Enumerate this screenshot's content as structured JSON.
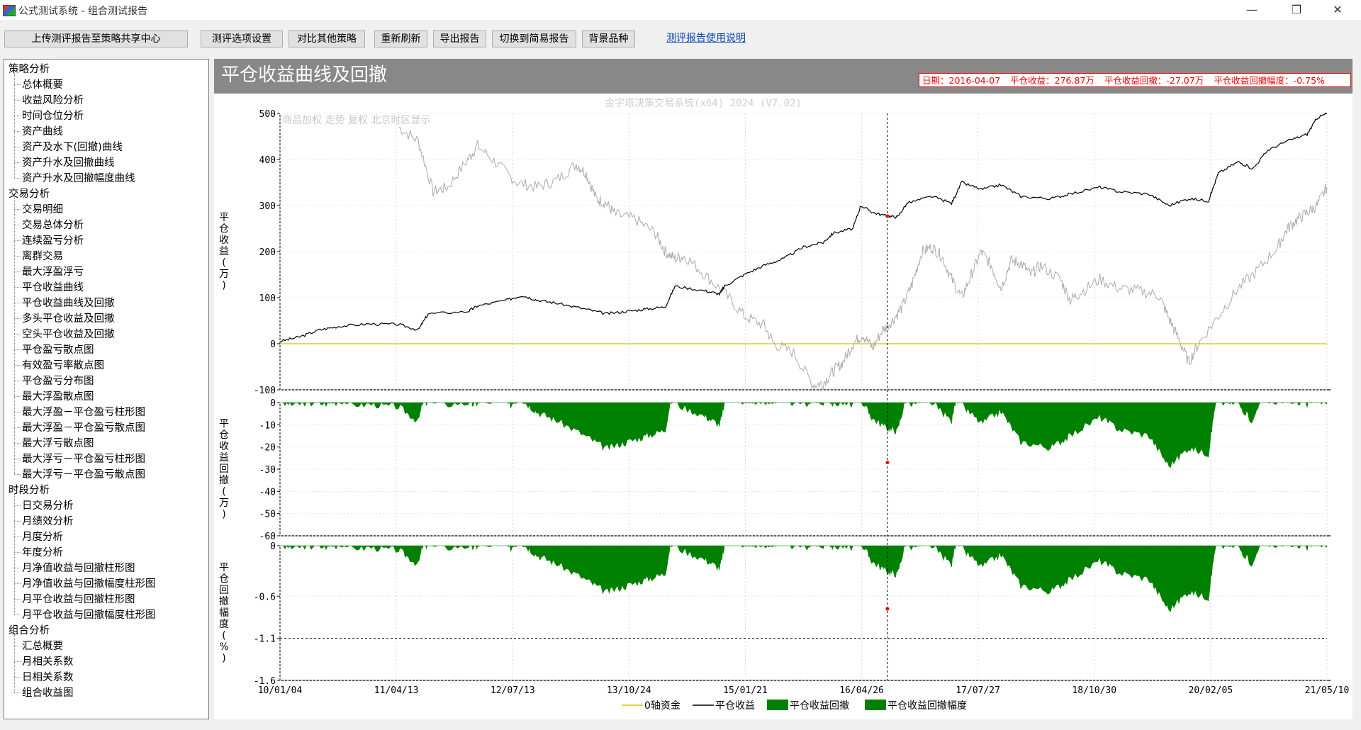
{
  "window": {
    "title": "公式测试系统 - 组合测试报告",
    "minimize_icon": "minimize-icon",
    "restore_icon": "restore-icon",
    "close_icon": "close-icon"
  },
  "toolbar": {
    "upload": "上传测评报告至策略共享中心",
    "options": "测评选项设置",
    "compare": "对比其他策略",
    "refresh": "重新刷新",
    "export": "导出报告",
    "switch": "切换到简易报告",
    "background": "背景品种",
    "help": "测评报告使用说明"
  },
  "sidebar": {
    "groups": [
      {
        "label": "策略分析",
        "items": [
          "总体概要",
          "收益风险分析",
          "时间仓位分析",
          "资产曲线",
          "资产及水下(回撤)曲线",
          "资产升水及回撤曲线",
          "资产升水及回撤幅度曲线"
        ]
      },
      {
        "label": "交易分析",
        "items": [
          "交易明细",
          "交易总体分析",
          "连续盈亏分析",
          "离群交易",
          "最大浮盈浮亏",
          "平仓收益曲线",
          "平仓收益曲线及回撤",
          "多头平仓收益及回撤",
          "空头平仓收益及回撤",
          "平仓盈亏散点图",
          "有效盈亏率散点图",
          "平仓盈亏分布图",
          "最大浮盈散点图",
          "最大浮盈－平仓盈亏柱形图",
          "最大浮盈－平仓盈亏散点图",
          "最大浮亏散点图",
          "最大浮亏－平仓盈亏柱形图",
          "最大浮亏－平仓盈亏散点图"
        ]
      },
      {
        "label": "时段分析",
        "items": [
          "日交易分析",
          "月绩效分析",
          "月度分析",
          "年度分析",
          "月净值收益与回撤柱形图",
          "月净值收益与回撤幅度柱形图",
          "月平仓收益与回撤柱形图",
          "月平仓收益与回撤幅度柱形图"
        ]
      },
      {
        "label": "组合分析",
        "items": [
          "汇总概要",
          "月相关系数",
          "日相关系数",
          "组合收益图"
        ]
      }
    ]
  },
  "report": {
    "title": "平仓收益曲线及回撤",
    "info": {
      "date": "日期：2016-04-07",
      "profit": "平仓收益：276.87万",
      "drawdown": "平仓收益回撤：-27.07万",
      "drawdown_pct": "平仓收益回撤幅度：-0.75%"
    },
    "watermark": "金字塔决策交易系统(x64) 2024 (V7.02)",
    "bg_label": "商品加权  走势  复权  北京时区显示"
  },
  "chart_data": {
    "type": "line",
    "x_ticks": [
      "10/01/04",
      "11/04/13",
      "12/07/13",
      "13/10/24",
      "15/01/21",
      "16/04/26",
      "17/07/27",
      "18/10/30",
      "20/02/05",
      "21/05/10"
    ],
    "cursor_date": "2016-04-07",
    "panels": [
      {
        "ylabel": "平仓收益(万)",
        "ylim": [
          -100,
          500
        ],
        "yticks": [
          500,
          400,
          300,
          200,
          100,
          0,
          -100
        ]
      },
      {
        "ylabel": "平仓收益回撤(万)",
        "ylim": [
          -60,
          0
        ],
        "yticks": [
          0,
          -10,
          -20,
          -30,
          -40,
          -50,
          -60
        ]
      },
      {
        "ylabel": "平仓回撤幅度(%)",
        "ylim": [
          -1.6,
          0
        ],
        "yticks": [
          "0",
          "-0.6",
          "-1.1",
          "-1.6"
        ],
        "dashed_level": -1.1
      }
    ],
    "series": [
      {
        "name": "0轴资金",
        "color": "#c8c800",
        "type": "line"
      },
      {
        "name": "平仓收益",
        "color": "#000000",
        "type": "line",
        "points": [
          [
            0,
            5
          ],
          [
            0.02,
            15
          ],
          [
            0.04,
            30
          ],
          [
            0.06,
            38
          ],
          [
            0.09,
            43
          ],
          [
            0.12,
            42
          ],
          [
            0.14,
            30
          ],
          [
            0.15,
            65
          ],
          [
            0.19,
            70
          ],
          [
            0.2,
            82
          ],
          [
            0.23,
            95
          ],
          [
            0.245,
            105
          ],
          [
            0.26,
            95
          ],
          [
            0.28,
            88
          ],
          [
            0.31,
            75
          ],
          [
            0.33,
            65
          ],
          [
            0.35,
            70
          ],
          [
            0.37,
            75
          ],
          [
            0.39,
            80
          ],
          [
            0.4,
            125
          ],
          [
            0.43,
            115
          ],
          [
            0.445,
            108
          ],
          [
            0.45,
            125
          ],
          [
            0.47,
            150
          ],
          [
            0.49,
            170
          ],
          [
            0.51,
            185
          ],
          [
            0.53,
            210
          ],
          [
            0.55,
            220
          ],
          [
            0.56,
            240
          ],
          [
            0.58,
            250
          ],
          [
            0.588,
            300
          ],
          [
            0.6,
            285
          ],
          [
            0.615,
            277
          ],
          [
            0.625,
            275
          ],
          [
            0.635,
            305
          ],
          [
            0.66,
            320
          ],
          [
            0.68,
            305
          ],
          [
            0.69,
            350
          ],
          [
            0.71,
            335
          ],
          [
            0.73,
            345
          ],
          [
            0.75,
            320
          ],
          [
            0.78,
            315
          ],
          [
            0.8,
            325
          ],
          [
            0.83,
            340
          ],
          [
            0.85,
            330
          ],
          [
            0.88,
            325
          ],
          [
            0.9,
            300
          ],
          [
            0.92,
            315
          ],
          [
            0.94,
            310
          ],
          [
            0.95,
            370
          ],
          [
            0.97,
            395
          ],
          [
            0.985,
            380
          ],
          [
            1.0,
            420
          ],
          [
            1.02,
            440
          ],
          [
            1.04,
            455
          ],
          [
            1.05,
            490
          ],
          [
            1.06,
            500
          ]
        ]
      },
      {
        "name": "平仓收益回撤",
        "color": "#008000",
        "type": "area"
      },
      {
        "name": "平仓收益回撤幅度",
        "color": "#008000",
        "type": "area"
      }
    ],
    "background_series": {
      "name": "商品加权",
      "color": "#aaaaaa",
      "points": [
        [
          0.12,
          470
        ],
        [
          0.14,
          440
        ],
        [
          0.155,
          330
        ],
        [
          0.17,
          340
        ],
        [
          0.19,
          400
        ],
        [
          0.2,
          430
        ],
        [
          0.22,
          390
        ],
        [
          0.24,
          350
        ],
        [
          0.26,
          340
        ],
        [
          0.28,
          355
        ],
        [
          0.3,
          390
        ],
        [
          0.31,
          370
        ],
        [
          0.32,
          315
        ],
        [
          0.33,
          305
        ],
        [
          0.34,
          280
        ],
        [
          0.36,
          270
        ],
        [
          0.38,
          240
        ],
        [
          0.39,
          200
        ],
        [
          0.4,
          185
        ],
        [
          0.41,
          190
        ],
        [
          0.43,
          150
        ],
        [
          0.45,
          110
        ],
        [
          0.47,
          60
        ],
        [
          0.49,
          40
        ],
        [
          0.5,
          0
        ],
        [
          0.52,
          -20
        ],
        [
          0.54,
          -90
        ],
        [
          0.55,
          -85
        ],
        [
          0.56,
          -60
        ],
        [
          0.57,
          -40
        ],
        [
          0.58,
          0
        ],
        [
          0.59,
          20
        ],
        [
          0.6,
          -10
        ],
        [
          0.61,
          30
        ],
        [
          0.62,
          50
        ],
        [
          0.63,
          80
        ],
        [
          0.64,
          130
        ],
        [
          0.65,
          200
        ],
        [
          0.66,
          210
        ],
        [
          0.67,
          190
        ],
        [
          0.68,
          140
        ],
        [
          0.69,
          100
        ],
        [
          0.7,
          150
        ],
        [
          0.71,
          200
        ],
        [
          0.72,
          170
        ],
        [
          0.73,
          120
        ],
        [
          0.74,
          180
        ],
        [
          0.75,
          175
        ],
        [
          0.76,
          150
        ],
        [
          0.77,
          170
        ],
        [
          0.79,
          140
        ],
        [
          0.8,
          95
        ],
        [
          0.81,
          110
        ],
        [
          0.83,
          140
        ],
        [
          0.85,
          120
        ],
        [
          0.87,
          115
        ],
        [
          0.89,
          105
        ],
        [
          0.9,
          55
        ],
        [
          0.91,
          10
        ],
        [
          0.92,
          -40
        ],
        [
          0.93,
          0
        ],
        [
          0.95,
          60
        ],
        [
          0.97,
          120
        ],
        [
          0.99,
          160
        ],
        [
          1.01,
          210
        ],
        [
          1.02,
          250
        ],
        [
          1.03,
          270
        ],
        [
          1.04,
          285
        ],
        [
          1.05,
          300
        ],
        [
          1.06,
          340
        ]
      ]
    }
  }
}
